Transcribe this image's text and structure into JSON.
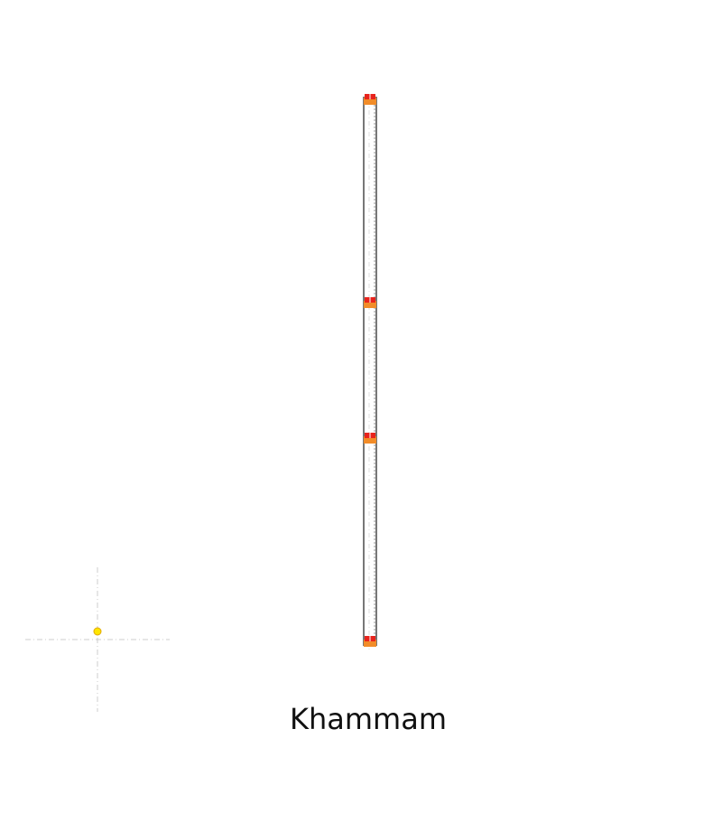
{
  "map": {
    "title": "Khammam",
    "station_markers": [
      {
        "fill": "#e8231c",
        "base": "#f28c28"
      },
      {
        "fill": "#e8231c",
        "base": "#f28c28"
      },
      {
        "fill": "#e8231c",
        "base": "#f28c28"
      },
      {
        "fill": "#e8231c",
        "base": "#f28c28"
      }
    ],
    "colors": {
      "track_outline": "#777777",
      "track_fill": "#ffffff",
      "centerline": "#bbbbbb",
      "guide_line": "#cccccc",
      "locator_dot": "#ffe600",
      "locator_dot_stroke": "#e0a800"
    }
  }
}
